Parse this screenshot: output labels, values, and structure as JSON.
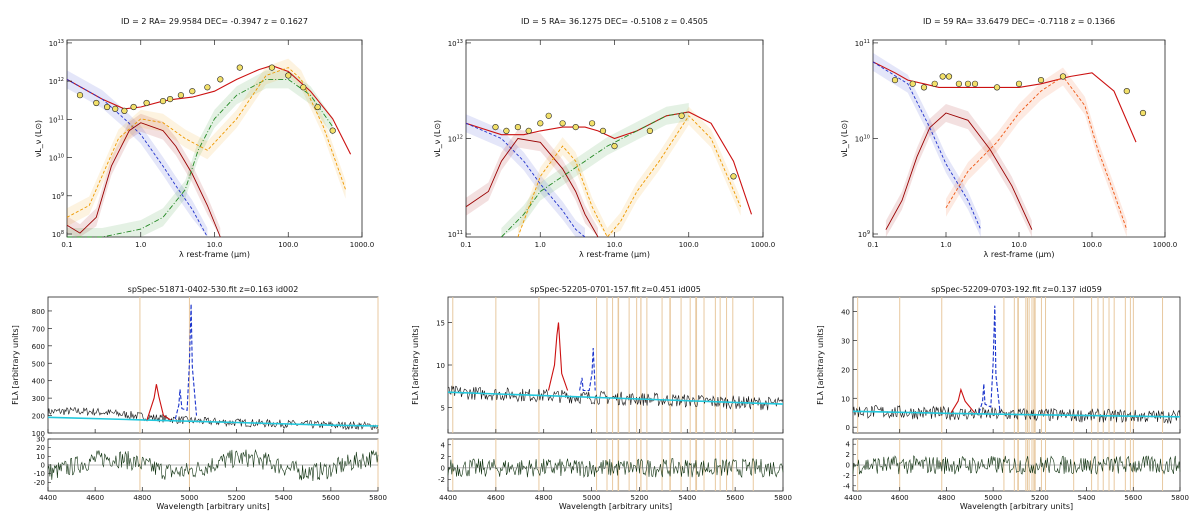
{
  "sed_panels": [
    {
      "title": "ID = 2   RA= 29.9584 DEC= -0.3947  z = 0.1627",
      "xlabel": "λ rest-frame (μm)",
      "ylabel": "νL_ν (L⊙)",
      "x_ticks": [
        "0.1",
        "1.0",
        "10.0",
        "100.0",
        "1000.0"
      ],
      "y_ticks": [
        "10^8",
        "10^9",
        "10^10",
        "10^11",
        "10^12",
        "10^13"
      ]
    },
    {
      "title": "ID = 5   RA= 36.1275 DEC= -0.5108  z = 0.4505",
      "xlabel": "λ rest-frame (μm)",
      "ylabel": "νL_ν (L⊙)",
      "x_ticks": [
        "0.1",
        "1.0",
        "10.0",
        "100.0",
        "1000.0"
      ],
      "y_ticks": [
        "10^11",
        "10^12",
        "10^13"
      ]
    },
    {
      "title": "ID = 59   RA= 33.6479 DEC= -0.7118  z = 0.1366",
      "xlabel": "λ rest-frame (μm)",
      "ylabel": "νL_ν (L⊙)",
      "x_ticks": [
        "0.1",
        "1.0",
        "10.0",
        "100.0",
        "1000.0"
      ],
      "y_ticks": [
        "10^9",
        "10^10",
        "10^11"
      ]
    }
  ],
  "spec_panels": [
    {
      "title": "spSpec-51871-0402-530.fit z=0.163 id002",
      "xlabel": "Wavelength [arbitrary units]",
      "ylabel": "FLλ [arbitrary units]",
      "x_ticks": [
        "4400",
        "4600",
        "4800",
        "5000",
        "5200",
        "5400",
        "5600",
        "5800"
      ],
      "y_ticks": [
        "100",
        "200",
        "300",
        "400",
        "500",
        "600",
        "700",
        "800"
      ],
      "res_ticks": [
        "-20",
        "-10",
        "0",
        "10",
        "20",
        "30"
      ]
    },
    {
      "title": "spSpec-52205-0701-157.fit z=0.451 id005",
      "xlabel": "Wavelength [arbitrary units]",
      "ylabel": "FLλ [arbitrary units]",
      "x_ticks": [
        "4400",
        "4600",
        "4800",
        "5000",
        "5200",
        "5400",
        "5600",
        "5800"
      ],
      "y_ticks": [
        "5",
        "10",
        "15"
      ],
      "res_ticks": [
        "-2",
        "0",
        "2",
        "4"
      ]
    },
    {
      "title": "spSpec-52209-0703-192.fit z=0.137 id059",
      "xlabel": "Wavelength [arbitrary units]",
      "ylabel": "FLλ [arbitrary units]",
      "x_ticks": [
        "4400",
        "4600",
        "4800",
        "5000",
        "5200",
        "5400",
        "5600",
        "5800"
      ],
      "y_ticks": [
        "0",
        "10",
        "20",
        "30",
        "40"
      ],
      "res_ticks": [
        "-4",
        "-2",
        "0",
        "2",
        "4"
      ]
    }
  ],
  "chart_data": [
    {
      "type": "line",
      "title": "ID = 2   RA= 29.9584 DEC= -0.3947  z = 0.1627",
      "xscale": "log",
      "yscale": "log",
      "xlim": [
        0.1,
        1000
      ],
      "ylim_log": [
        8,
        13
      ],
      "series": [
        {
          "name": "total",
          "color": "#cc1111",
          "x": [
            0.1,
            0.3,
            0.6,
            1,
            2,
            3,
            5,
            10,
            20,
            40,
            60,
            100,
            200,
            400,
            700
          ],
          "logy": [
            12.0,
            11.5,
            11.25,
            11.3,
            11.45,
            11.5,
            11.55,
            11.7,
            12.0,
            12.25,
            12.35,
            12.2,
            11.7,
            11.0,
            10.1
          ]
        },
        {
          "name": "agn",
          "color": "#2233cc",
          "x": [
            0.1,
            0.3,
            0.6,
            1,
            2,
            3,
            5,
            8
          ],
          "logy": [
            12.0,
            11.5,
            11.0,
            10.6,
            9.8,
            9.3,
            8.7,
            8.0
          ]
        },
        {
          "name": "stellar",
          "color": "#990000",
          "x": [
            0.1,
            0.15,
            0.25,
            0.4,
            0.7,
            1,
            2,
            3,
            5,
            8,
            12
          ],
          "logy": [
            8.3,
            8.1,
            8.5,
            9.8,
            10.7,
            10.9,
            10.7,
            10.3,
            9.6,
            8.8,
            8.0
          ]
        },
        {
          "name": "torus",
          "color": "#228822",
          "x": [
            0.1,
            0.3,
            1,
            2,
            4,
            6,
            10,
            20,
            50,
            100,
            200,
            400
          ],
          "logy": [
            8.0,
            8.0,
            8.2,
            8.5,
            9.2,
            10.2,
            11.0,
            11.6,
            12.0,
            12.0,
            11.6,
            10.8
          ]
        },
        {
          "name": "sf",
          "color": "#ee9900",
          "x": [
            0.1,
            0.2,
            0.5,
            1,
            2,
            4,
            8,
            20,
            50,
            100,
            150,
            300,
            600
          ],
          "logy": [
            8.5,
            8.8,
            10.5,
            11.0,
            10.9,
            10.5,
            10.2,
            11.0,
            12.1,
            12.3,
            12.0,
            10.8,
            9.2
          ]
        }
      ],
      "points": {
        "x": [
          0.15,
          0.25,
          0.35,
          0.45,
          0.6,
          0.8,
          1.2,
          2,
          2.5,
          3.5,
          5,
          8,
          12,
          22,
          60,
          100,
          160,
          250,
          400
        ],
        "logy": [
          11.6,
          11.4,
          11.3,
          11.25,
          11.2,
          11.3,
          11.4,
          11.45,
          11.5,
          11.6,
          11.7,
          11.8,
          12.0,
          12.3,
          12.3,
          12.1,
          11.8,
          11.3,
          10.7
        ]
      }
    },
    {
      "type": "line",
      "title": "ID = 5   RA= 36.1275 DEC= -0.5108  z = 0.4505",
      "xscale": "log",
      "yscale": "log",
      "xlim": [
        0.1,
        1000
      ],
      "ylim_log": [
        10.6,
        13.2
      ],
      "series": [
        {
          "name": "total",
          "color": "#cc1111",
          "x": [
            0.1,
            0.3,
            0.6,
            1,
            2,
            4,
            6,
            10,
            20,
            50,
            100,
            200,
            400,
            700
          ],
          "logy": [
            12.1,
            11.95,
            11.95,
            12.0,
            12.05,
            12.05,
            12.0,
            11.9,
            12.0,
            12.2,
            12.25,
            12.1,
            11.6,
            10.9
          ]
        },
        {
          "name": "agn",
          "color": "#2233cc",
          "x": [
            0.1,
            0.3,
            0.6,
            1,
            2,
            3,
            4
          ],
          "logy": [
            12.1,
            11.9,
            11.6,
            11.3,
            10.95,
            10.7,
            10.6
          ]
        },
        {
          "name": "stellar",
          "color": "#990000",
          "x": [
            0.1,
            0.2,
            0.3,
            0.5,
            1,
            2,
            3,
            4,
            6
          ],
          "logy": [
            11.0,
            11.2,
            11.6,
            11.9,
            11.85,
            11.5,
            11.2,
            10.9,
            10.6
          ]
        },
        {
          "name": "torus",
          "color": "#228822",
          "x": [
            0.3,
            0.6,
            1,
            2,
            4,
            8,
            20,
            50,
            100
          ],
          "logy": [
            10.6,
            10.9,
            11.2,
            11.4,
            11.6,
            11.8,
            12.0,
            12.2,
            12.25
          ]
        },
        {
          "name": "sf",
          "color": "#ee9900",
          "x": [
            0.5,
            1,
            2,
            3,
            5,
            8,
            12,
            20,
            40,
            100,
            200,
            500
          ],
          "logy": [
            10.6,
            11.4,
            11.8,
            11.6,
            11.0,
            10.6,
            10.8,
            11.2,
            11.6,
            12.2,
            11.9,
            11.0
          ]
        }
      ],
      "points": {
        "x": [
          0.25,
          0.35,
          0.5,
          0.7,
          1,
          1.3,
          2,
          3,
          5,
          7,
          10,
          30,
          80,
          400
        ],
        "logy": [
          12.05,
          12.0,
          12.05,
          12.0,
          12.1,
          12.2,
          12.1,
          12.05,
          12.1,
          12.0,
          11.8,
          12.0,
          12.2,
          11.4
        ]
      }
    },
    {
      "type": "line",
      "title": "ID = 59   RA= 33.6479 DEC= -0.7118  z = 0.1366",
      "xscale": "log",
      "yscale": "log",
      "xlim": [
        0.1,
        1000
      ],
      "ylim_log": [
        8.8,
        11.5
      ],
      "series": [
        {
          "name": "total",
          "color": "#cc1111",
          "x": [
            0.1,
            0.2,
            0.3,
            0.5,
            0.8,
            1,
            2,
            3,
            5,
            10,
            20,
            50,
            100,
            200,
            400
          ],
          "logy": [
            11.2,
            11.05,
            10.95,
            10.9,
            10.85,
            10.85,
            10.85,
            10.85,
            10.85,
            10.85,
            10.9,
            11.0,
            11.05,
            10.8,
            10.1
          ]
        },
        {
          "name": "agn",
          "color": "#2233cc",
          "x": [
            0.1,
            0.3,
            0.6,
            1,
            2,
            3
          ],
          "logy": [
            11.2,
            10.9,
            10.3,
            9.8,
            9.3,
            8.9
          ]
        },
        {
          "name": "stellar",
          "color": "#990000",
          "x": [
            0.15,
            0.25,
            0.4,
            0.6,
            1,
            2,
            4,
            8,
            15
          ],
          "logy": [
            8.9,
            9.3,
            9.9,
            10.3,
            10.5,
            10.4,
            10.0,
            9.5,
            8.9
          ]
        },
        {
          "name": "sf",
          "color": "#ee5511",
          "x": [
            1,
            2,
            5,
            10,
            20,
            40,
            80,
            120,
            200,
            300
          ],
          "logy": [
            9.2,
            9.7,
            10.1,
            10.5,
            10.8,
            11.0,
            10.6,
            10.0,
            9.4,
            8.9
          ]
        }
      ],
      "points": {
        "x": [
          0.2,
          0.35,
          0.5,
          0.7,
          0.9,
          1.1,
          1.5,
          2,
          2.5,
          5,
          10,
          20,
          40,
          300,
          500
        ],
        "logy": [
          10.95,
          10.9,
          10.85,
          10.9,
          11.0,
          11.0,
          10.9,
          10.9,
          10.9,
          10.85,
          10.9,
          10.95,
          11.0,
          10.8,
          10.5
        ]
      }
    },
    {
      "type": "line",
      "title": "spSpec-51871-0402-530.fit z=0.163 id002",
      "xlim": [
        4400,
        5800
      ],
      "ylim": [
        100,
        880
      ],
      "series": [
        {
          "name": "continuum",
          "color": "#22c8dd",
          "x": [
            4400,
            4800,
            5200,
            5600,
            5800
          ],
          "values": [
            190,
            175,
            160,
            145,
            140
          ]
        },
        {
          "name": "Hbeta",
          "color": "#cc1111",
          "x": [
            4820,
            4850,
            4860,
            4870,
            4890,
            4920
          ],
          "values": [
            175,
            300,
            380,
            310,
            200,
            175
          ]
        },
        {
          "name": "OIII",
          "color": "#1a33cc",
          "x": [
            4940,
            4955,
            4960,
            4968,
            4990,
            5000,
            5007,
            5012,
            5030
          ],
          "values": [
            180,
            260,
            350,
            240,
            230,
            500,
            840,
            480,
            200
          ]
        }
      ],
      "residual_ylim": [
        -30,
        30
      ]
    },
    {
      "type": "line",
      "title": "spSpec-52205-0701-157.fit z=0.451 id005",
      "xlim": [
        4400,
        5800
      ],
      "ylim": [
        2,
        18
      ],
      "series": [
        {
          "name": "continuum",
          "color": "#22c8dd",
          "x": [
            4400,
            4800,
            5200,
            5600,
            5800
          ],
          "values": [
            6.8,
            6.4,
            6.0,
            5.6,
            5.4
          ]
        },
        {
          "name": "Hbeta",
          "color": "#cc1111",
          "x": [
            4820,
            4845,
            4855,
            4862,
            4875,
            4900
          ],
          "values": [
            7,
            10,
            13.5,
            15,
            9,
            7
          ]
        },
        {
          "name": "OIII",
          "color": "#1a33cc",
          "x": [
            4950,
            4960,
            4965,
            4990,
            5002,
            5007,
            5015
          ],
          "values": [
            7,
            8.5,
            7,
            7,
            9,
            12,
            7
          ]
        }
      ],
      "residual_ylim": [
        -4,
        5
      ]
    },
    {
      "type": "line",
      "title": "spSpec-52209-0703-192.fit z=0.137 id059",
      "xlim": [
        4400,
        5800
      ],
      "ylim": [
        -2,
        45
      ],
      "series": [
        {
          "name": "continuum",
          "color": "#22c8dd",
          "x": [
            4400,
            4800,
            5200,
            5600,
            5800
          ],
          "values": [
            5.5,
            4.8,
            4.3,
            3.8,
            3.6
          ]
        },
        {
          "name": "Hbeta",
          "color": "#cc1111",
          "x": [
            4820,
            4850,
            4862,
            4880,
            4920
          ],
          "values": [
            5,
            9,
            13,
            9,
            5
          ]
        },
        {
          "name": "OIII",
          "color": "#1a33cc",
          "x": [
            4940,
            4955,
            4960,
            4965,
            4990,
            5000,
            5007,
            5012,
            5030
          ],
          "values": [
            5,
            9,
            15,
            8,
            7,
            22,
            42,
            18,
            5
          ]
        }
      ],
      "residual_ylim": [
        -5,
        5
      ]
    }
  ]
}
